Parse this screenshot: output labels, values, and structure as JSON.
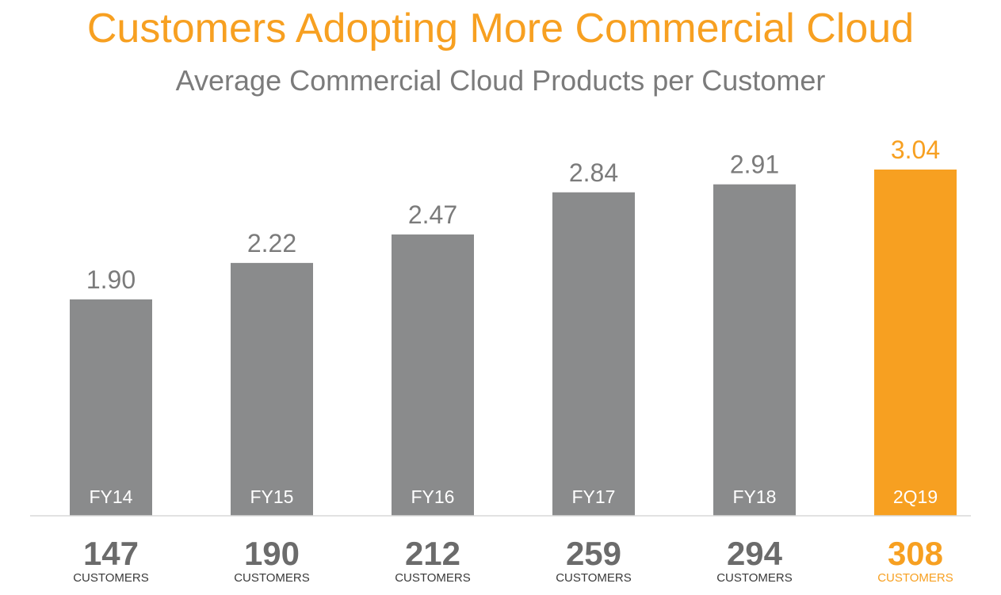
{
  "title": "Customers Adopting More Commercial Cloud",
  "subtitle": "Average Commercial Cloud Products per Customer",
  "colors": {
    "title": "#f7a021",
    "bar": "#8a8b8c",
    "highlight": "#f7a021",
    "text_gray": "#7b7b7b",
    "count_gray": "#6b6b6b",
    "axis": "#d9d9d9"
  },
  "chart_data": {
    "type": "bar",
    "title": "Customers Adopting More Commercial Cloud",
    "subtitle": "Average Commercial Cloud Products per Customer",
    "categories": [
      "FY14",
      "FY15",
      "FY16",
      "FY17",
      "FY18",
      "2Q19"
    ],
    "values": [
      1.9,
      2.22,
      2.47,
      2.84,
      2.91,
      3.04
    ],
    "value_labels": [
      "1.90",
      "2.22",
      "2.47",
      "2.84",
      "2.91",
      "3.04"
    ],
    "highlight_index": 5,
    "customers": [
      "147",
      "190",
      "212",
      "259",
      "294",
      "308"
    ],
    "customers_unit": "CUSTOMERS",
    "xlabel": "",
    "ylabel": "",
    "ylim": [
      0,
      3.04
    ],
    "grid": false,
    "legend": "none"
  }
}
